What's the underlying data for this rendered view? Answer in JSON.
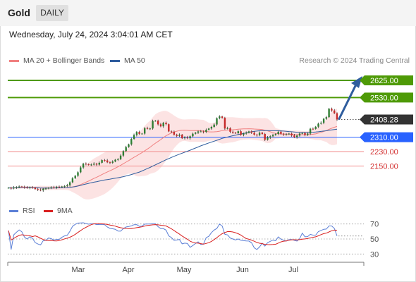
{
  "header": {
    "title": "Gold",
    "timeframe": "DAILY"
  },
  "timestamp": "Wednesday, July 24, 2024 3:04:01 AM CET",
  "legend": {
    "ma20": {
      "label": "MA 20 + Bollinger Bands",
      "color": "#f08080"
    },
    "ma50": {
      "label": "MA 50",
      "color": "#2f5d9e"
    }
  },
  "credit": "Research © 2024 Trading Central",
  "rsi_legend": {
    "rsi": {
      "label": "RSI",
      "color": "#5b7fd6"
    },
    "ma9": {
      "label": "9MA",
      "color": "#d92020"
    }
  },
  "chart_data": {
    "type": "candlestick",
    "symbol": "Gold",
    "interval": "daily",
    "x_ticks": [
      "Mar",
      "Apr",
      "May",
      "Jun",
      "Jul"
    ],
    "ylim": [
      2015,
      2680
    ],
    "levels": [
      {
        "value": 2625.0,
        "label": "2625.00",
        "kind": "resistance",
        "color": "#4e9a06"
      },
      {
        "value": 2530.0,
        "label": "2530.00",
        "kind": "resistance",
        "color": "#4e9a06"
      },
      {
        "value": 2408.28,
        "label": "2408.28",
        "kind": "last",
        "color": "#333333"
      },
      {
        "value": 2310.0,
        "label": "2310.00",
        "kind": "pivot",
        "color": "#2962ff"
      },
      {
        "value": 2230.0,
        "label": "2230.00",
        "kind": "support",
        "color": "#e03030"
      },
      {
        "value": 2150.0,
        "label": "2150.00",
        "kind": "support",
        "color": "#e03030"
      }
    ],
    "close_series": [
      2029,
      2026,
      2031,
      2033,
      2036,
      2035,
      2031,
      2029,
      2032,
      2030,
      2022,
      2018,
      2015,
      2024,
      2025,
      2029,
      2032,
      2030,
      2035,
      2034,
      2036,
      2038,
      2043,
      2060,
      2082,
      2096,
      2115,
      2142,
      2163,
      2160,
      2157,
      2158,
      2163,
      2158,
      2168,
      2183,
      2181,
      2171,
      2168,
      2175,
      2185,
      2188,
      2208,
      2233,
      2255,
      2270,
      2300,
      2322,
      2339,
      2329,
      2330,
      2360,
      2358,
      2358,
      2400,
      2401,
      2381,
      2370,
      2390,
      2382,
      2342,
      2339,
      2324,
      2317,
      2324,
      2304,
      2309,
      2304,
      2315,
      2329,
      2335,
      2342,
      2342,
      2339,
      2351,
      2358,
      2367,
      2380,
      2415,
      2425,
      2417,
      2358,
      2360,
      2340,
      2335,
      2332,
      2343,
      2323,
      2330,
      2335,
      2342,
      2335,
      2324,
      2321,
      2335,
      2328,
      2296,
      2308,
      2315,
      2322,
      2328,
      2340,
      2329,
      2325,
      2326,
      2330,
      2320,
      2310,
      2319,
      2330,
      2333,
      2322,
      2330,
      2357,
      2356,
      2368,
      2385,
      2390,
      2412,
      2421,
      2468,
      2458,
      2443,
      2408
    ],
    "ma50_end": 2350,
    "rsi": {
      "levels": [
        70,
        50,
        30
      ],
      "ylim": [
        20,
        80
      ],
      "last_value": 54
    }
  }
}
